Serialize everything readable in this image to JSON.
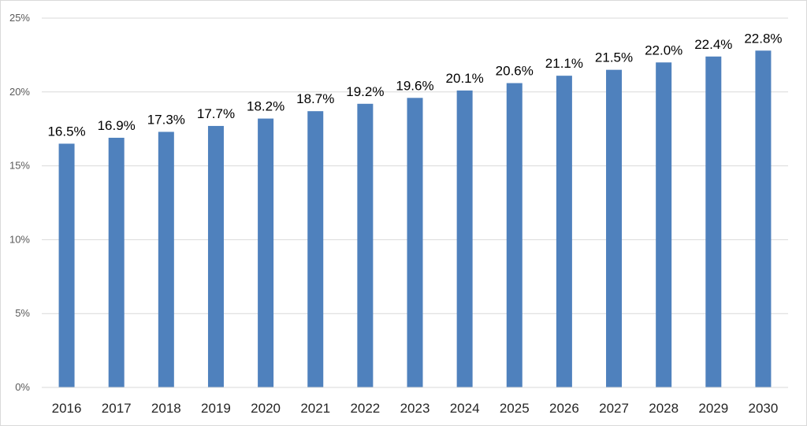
{
  "chart_data": {
    "type": "bar",
    "title": "",
    "xlabel": "",
    "ylabel": "",
    "categories": [
      "2016",
      "2017",
      "2018",
      "2019",
      "2020",
      "2021",
      "2022",
      "2023",
      "2024",
      "2025",
      "2026",
      "2027",
      "2028",
      "2029",
      "2030"
    ],
    "series": [
      {
        "values": [
          16.5,
          16.9,
          17.3,
          17.7,
          18.2,
          18.7,
          19.2,
          19.6,
          20.1,
          20.6,
          21.1,
          21.5,
          22.0,
          22.4,
          22.8
        ],
        "color": "#4f81bd"
      }
    ],
    "data_labels": [
      "16.5%",
      "16.9%",
      "17.3%",
      "17.7%",
      "18.2%",
      "18.7%",
      "19.2%",
      "19.6%",
      "20.1%",
      "20.6%",
      "21.1%",
      "21.5%",
      "22.0%",
      "22.4%",
      "22.8%"
    ],
    "ylim": [
      0,
      25
    ],
    "yticks": [
      0,
      5,
      10,
      15,
      20,
      25
    ],
    "ytick_labels": [
      "0%",
      "5%",
      "10%",
      "15%",
      "20%",
      "25%"
    ],
    "grid": true,
    "gridline_color": "#d9d9d9",
    "legend": "none"
  }
}
